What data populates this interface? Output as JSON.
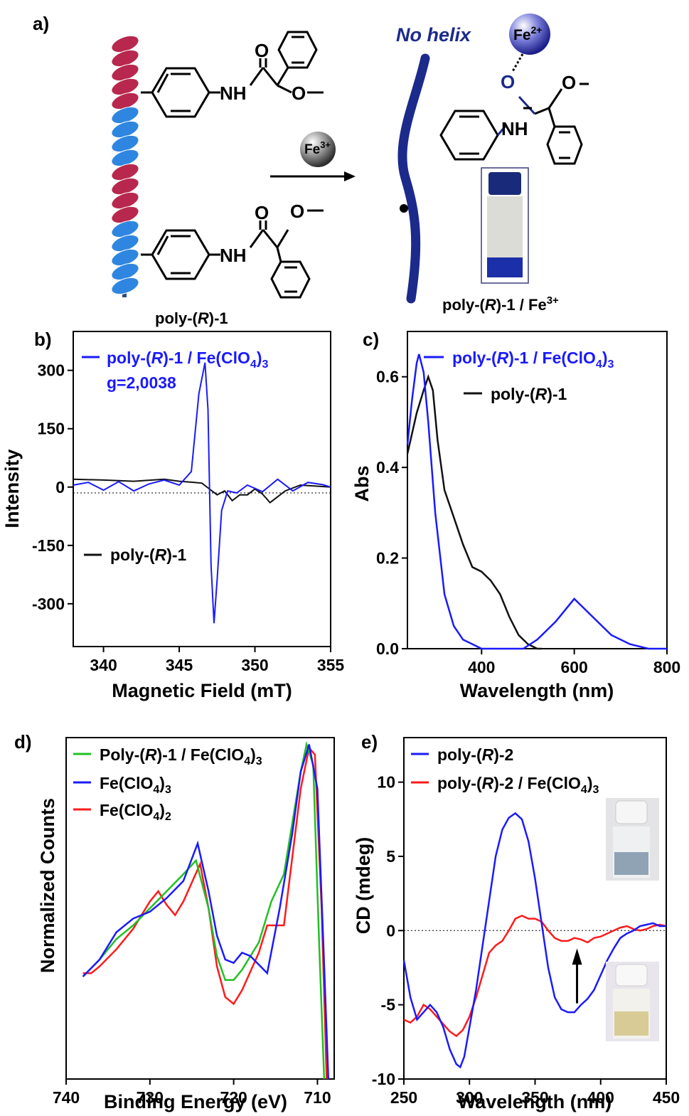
{
  "colors": {
    "blue": "#1a1aff",
    "black": "#111111",
    "red": "#ff1a1a",
    "green": "#22c022",
    "navy": "#1c2a8c",
    "helix_red": "#b8284e",
    "helix_blue": "#2f86e0"
  },
  "panel_a": {
    "label": "a)",
    "no_helix": "No helix",
    "fe3_ball": {
      "base": "Fe",
      "sup": "3+"
    },
    "fe2_ball": {
      "base": "Fe",
      "sup": "2+"
    },
    "polymer_label": {
      "pre": "poly-(",
      "it": "R",
      "post": ")-1"
    },
    "complex_label": {
      "pre": "poly-(",
      "it": "R",
      "post": ")-1 / Fe",
      "sup": "3+"
    },
    "atoms": {
      "O": "O",
      "NH": "NH"
    }
  },
  "chart_data": [
    {
      "panel": "b)",
      "type": "line",
      "xlabel": "Magnetic Field (mT)",
      "ylabel": "Intensity",
      "xlim": [
        338,
        355
      ],
      "ylim": [
        -410,
        400
      ],
      "xticks": [
        340,
        345,
        350,
        355
      ],
      "yticks": [
        300,
        150,
        0,
        -150,
        -300
      ],
      "annotation": "g=2,0038",
      "series": [
        {
          "name": "poly-(R)-1 / Fe(ClO4)3",
          "color": "#1a1aff",
          "x": [
            338,
            339,
            340,
            341,
            342,
            343,
            344,
            345,
            345.8,
            346.3,
            346.7,
            346.9,
            347.1,
            347.3,
            347.5,
            347.8,
            348.2,
            348.8,
            349.5,
            350.5,
            351.5,
            352.5,
            353.5,
            354.5,
            355
          ],
          "y": [
            5,
            12,
            -8,
            14,
            -10,
            8,
            18,
            5,
            40,
            240,
            320,
            200,
            -200,
            -350,
            -240,
            -60,
            -10,
            -15,
            5,
            -12,
            20,
            -10,
            12,
            6,
            0
          ]
        },
        {
          "name": "poly-(R)-1",
          "color": "#111111",
          "x": [
            338,
            340,
            342,
            344,
            345,
            346,
            346.5,
            347,
            347.5,
            348,
            348.5,
            349,
            349.5,
            350,
            350.5,
            351,
            352,
            353,
            355
          ],
          "y": [
            20,
            18,
            15,
            20,
            15,
            12,
            10,
            -5,
            -20,
            -10,
            -35,
            -20,
            -20,
            -5,
            -18,
            -40,
            -10,
            5,
            0
          ]
        }
      ]
    },
    {
      "panel": "c)",
      "type": "line",
      "xlabel": "Wavelength (nm)",
      "ylabel": "Abs",
      "xlim": [
        240,
        800
      ],
      "ylim": [
        0,
        0.7
      ],
      "xticks": [
        400,
        600,
        800
      ],
      "yticks": [
        0.0,
        0.2,
        0.4,
        0.6
      ],
      "series": [
        {
          "name": "poly-(R)-1 / Fe(ClO4)3",
          "color": "#1a1aff",
          "x": [
            240,
            250,
            260,
            265,
            275,
            285,
            300,
            320,
            340,
            360,
            380,
            400,
            420,
            470,
            490,
            520,
            560,
            600,
            640,
            680,
            720,
            760,
            800
          ],
          "y": [
            0.45,
            0.55,
            0.63,
            0.65,
            0.61,
            0.5,
            0.3,
            0.12,
            0.05,
            0.02,
            0.01,
            0.0,
            0.0,
            0.0,
            0.0,
            0.02,
            0.06,
            0.11,
            0.07,
            0.03,
            0.01,
            0.0,
            0.0
          ]
        },
        {
          "name": "poly-(R)-1",
          "color": "#111111",
          "x": [
            240,
            260,
            275,
            285,
            295,
            305,
            320,
            340,
            360,
            380,
            400,
            420,
            440,
            460,
            480,
            500,
            520,
            530
          ],
          "y": [
            0.43,
            0.52,
            0.57,
            0.6,
            0.57,
            0.46,
            0.35,
            0.29,
            0.23,
            0.18,
            0.17,
            0.15,
            0.12,
            0.07,
            0.03,
            0.01,
            0.0,
            0.0
          ]
        }
      ]
    },
    {
      "panel": "d)",
      "type": "line",
      "xlabel": "Binding Energy (eV)",
      "ylabel": "Normalized Counts",
      "xlim": [
        740,
        708
      ],
      "ylim": [
        0,
        1.0
      ],
      "xticks": [
        740,
        730,
        720,
        710
      ],
      "series": [
        {
          "name": "Poly-(R)-1 / Fe(ClO4)3",
          "color": "#22c022",
          "x": [
            738,
            736,
            734,
            732,
            730,
            728,
            726,
            724.5,
            723,
            722,
            721,
            720,
            719,
            717,
            715.5,
            714,
            713,
            712,
            711.3,
            710.5,
            709.8,
            709.2
          ],
          "y": [
            0.3,
            0.35,
            0.41,
            0.45,
            0.5,
            0.55,
            0.6,
            0.64,
            0.5,
            0.36,
            0.29,
            0.29,
            0.32,
            0.4,
            0.52,
            0.6,
            0.75,
            0.9,
            0.98,
            0.92,
            0.4,
            0.0
          ]
        },
        {
          "name": "Fe(ClO4)3",
          "color": "#1a1aff",
          "x": [
            738,
            736,
            734,
            732,
            730,
            728,
            726,
            724.3,
            723,
            722,
            721,
            720,
            719,
            718,
            716,
            714.5,
            713,
            712,
            711,
            710,
            709.3,
            708.7
          ],
          "y": [
            0.3,
            0.35,
            0.43,
            0.47,
            0.49,
            0.53,
            0.58,
            0.69,
            0.55,
            0.42,
            0.35,
            0.34,
            0.37,
            0.36,
            0.31,
            0.5,
            0.72,
            0.9,
            0.98,
            0.85,
            0.4,
            0.0
          ]
        },
        {
          "name": "Fe(ClO4)2",
          "color": "#ff1a1a",
          "x": [
            738,
            737,
            736,
            734,
            732,
            730,
            729,
            728,
            727,
            726,
            724,
            723,
            722,
            721,
            720,
            719,
            717,
            716,
            714,
            713,
            712,
            711,
            710.3,
            709.5,
            708.9
          ],
          "y": [
            0.31,
            0.31,
            0.33,
            0.38,
            0.44,
            0.52,
            0.55,
            0.51,
            0.48,
            0.52,
            0.63,
            0.5,
            0.33,
            0.24,
            0.22,
            0.26,
            0.37,
            0.45,
            0.45,
            0.65,
            0.85,
            0.97,
            0.95,
            0.5,
            0.0
          ]
        }
      ]
    },
    {
      "panel": "e)",
      "type": "line",
      "xlabel": "Wavelength (nm)",
      "ylabel": "CD (mdeg)",
      "xlim": [
        250,
        450
      ],
      "ylim": [
        -10,
        13
      ],
      "xticks": [
        250,
        300,
        350,
        400,
        450
      ],
      "yticks": [
        10,
        5,
        0,
        -5,
        -10
      ],
      "series": [
        {
          "name": "poly-(R)-2",
          "color": "#1a1aff",
          "x": [
            250,
            255,
            260,
            265,
            270,
            275,
            280,
            285,
            290,
            293,
            296,
            300,
            305,
            310,
            315,
            320,
            325,
            330,
            335,
            340,
            345,
            350,
            355,
            360,
            365,
            370,
            375,
            380,
            385,
            390,
            395,
            400,
            405,
            410,
            415,
            420,
            425,
            430,
            435,
            440,
            445,
            450
          ],
          "y": [
            -2,
            -4.5,
            -6,
            -5.5,
            -5,
            -5.5,
            -6.5,
            -8,
            -9,
            -9.2,
            -8.5,
            -6.5,
            -4,
            -1,
            2,
            5,
            6.8,
            7.6,
            7.9,
            7.5,
            6,
            3.5,
            0.5,
            -2.5,
            -4.5,
            -5.3,
            -5.5,
            -5.5,
            -5,
            -4.6,
            -4,
            -3,
            -2,
            -1.2,
            -0.5,
            -0.2,
            0,
            0.3,
            0.4,
            0.5,
            0.3,
            0.3
          ]
        },
        {
          "name": "poly-(R)-2 / Fe(ClO4)3",
          "color": "#ff1a1a",
          "x": [
            250,
            255,
            260,
            265,
            270,
            275,
            280,
            285,
            290,
            295,
            300,
            305,
            310,
            315,
            320,
            325,
            330,
            335,
            340,
            345,
            350,
            355,
            360,
            365,
            370,
            375,
            380,
            385,
            390,
            395,
            400,
            405,
            410,
            415,
            420,
            425,
            430,
            435,
            440,
            445,
            450
          ],
          "y": [
            -6,
            -6.2,
            -5.8,
            -5,
            -5.3,
            -5.8,
            -6.3,
            -6.8,
            -7.1,
            -6.7,
            -5.8,
            -4.5,
            -3,
            -1.5,
            -1,
            -0.7,
            0,
            0.8,
            1,
            0.8,
            0.8,
            0.6,
            0,
            -0.5,
            -0.7,
            -0.7,
            -0.5,
            -0.6,
            -0.8,
            -0.5,
            -0.4,
            -0.2,
            0,
            0.2,
            0.3,
            0.1,
            0,
            0.1,
            0.3,
            0.4,
            0.3
          ]
        }
      ],
      "arrow_x": 382
    }
  ]
}
